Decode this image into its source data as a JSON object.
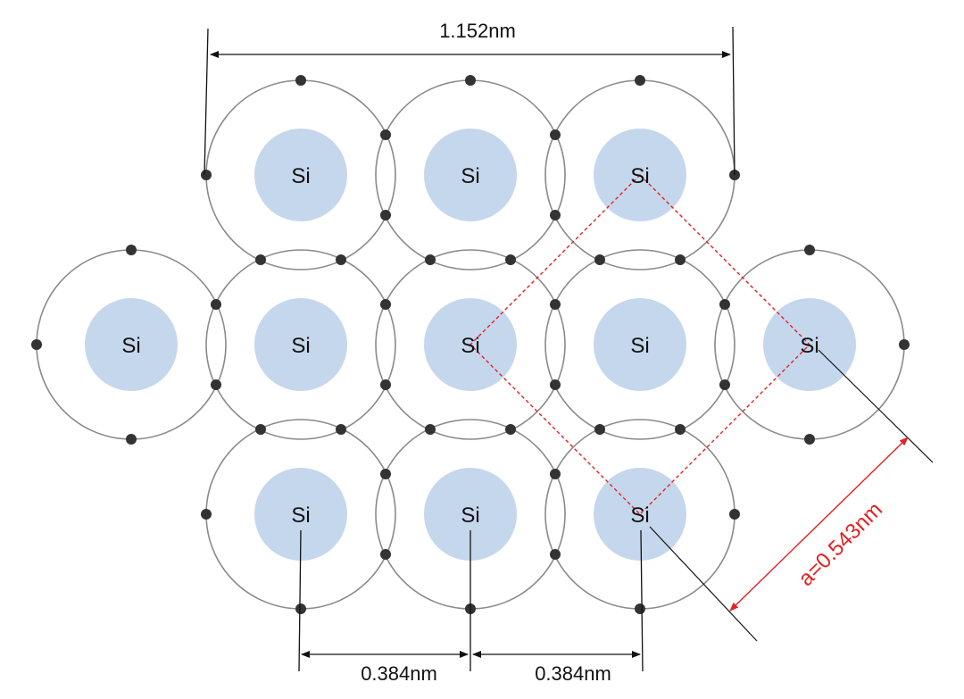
{
  "dimensions": {
    "top_width": "1.152nm",
    "bottom_spacing_1": "0.384nm",
    "bottom_spacing_2": "0.384nm",
    "lattice_constant": "a=0.543nm"
  },
  "atoms": [
    {
      "label": "Si",
      "row": 0,
      "col": 1
    },
    {
      "label": "Si",
      "row": 0,
      "col": 2
    },
    {
      "label": "Si",
      "row": 0,
      "col": 3
    },
    {
      "label": "Si",
      "row": 1,
      "col": 0
    },
    {
      "label": "Si",
      "row": 1,
      "col": 1
    },
    {
      "label": "Si",
      "row": 1,
      "col": 2
    },
    {
      "label": "Si",
      "row": 1,
      "col": 3
    },
    {
      "label": "Si",
      "row": 1,
      "col": 4
    },
    {
      "label": "Si",
      "row": 2,
      "col": 1
    },
    {
      "label": "Si",
      "row": 2,
      "col": 2
    },
    {
      "label": "Si",
      "row": 2,
      "col": 3
    }
  ],
  "colors": {
    "nucleus": "#c5d7ec",
    "orbit": "#8a8a8a",
    "electron": "#333333",
    "dimension_line": "#111111",
    "highlight": "#e32121"
  }
}
